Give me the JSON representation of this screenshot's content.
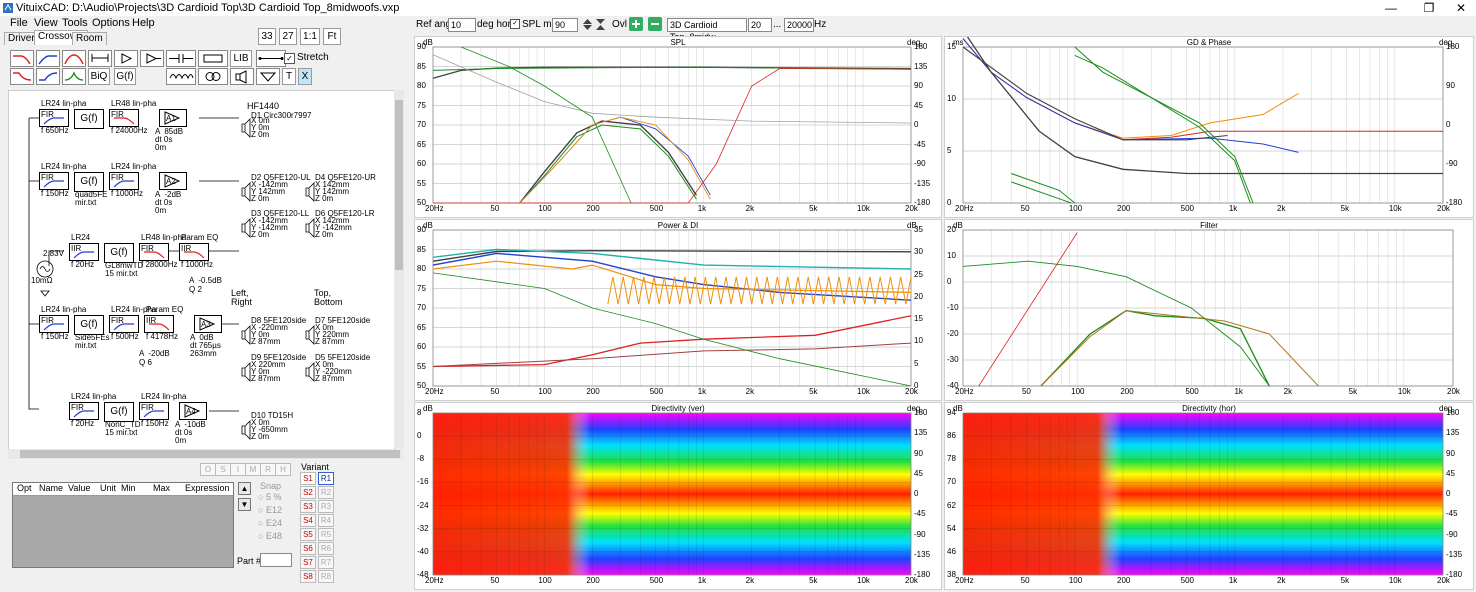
{
  "window": {
    "title": "VituixCAD: D:\\Audio\\Projects\\3D Cardioid Top\\3D Cardioid Top_8midwoofs.vxp",
    "min": "—",
    "restore": "❐",
    "close": "✕"
  },
  "menu": [
    "File",
    "View",
    "Tools",
    "Options",
    "Help"
  ],
  "tabs": [
    "Drivers",
    "Crossover",
    "Room"
  ],
  "zoom_buttons": [
    "33",
    "27",
    "1:1",
    "Ft"
  ],
  "toolbar": {
    "biq": "BiQ",
    "gf": "G(f)",
    "lib": "LIB",
    "t": "T",
    "x": "X",
    "stretch": "Stretch"
  },
  "colors": {
    "red": "#e02020",
    "blue": "#2040d0",
    "green": "#1a8c1a",
    "orange": "#f0900a",
    "teal": "#20b0b0",
    "gray": "#808080",
    "dark": "#404040",
    "brown": "#b07820",
    "pink": "#e08080"
  },
  "top": {
    "ref_angle_label": "Ref angle",
    "ref_angle": "10",
    "deg_hor": "deg hor",
    "spl_max_label": "SPL max",
    "spl_max": "90",
    "ovl": "Ovl",
    "driver": "3D Cardioid Top_8midw",
    "f_low": "20",
    "dots": "...",
    "f_high": "20000",
    "hz": "Hz"
  },
  "schematic": {
    "blocks": [
      {
        "t": "LR24 lin-pha",
        "b": "FIR",
        "f": "f  650Hz"
      },
      {
        "t": "LR48 lin-pha",
        "b": "FIR",
        "f": "f  24000Hz"
      },
      {
        "t": "LR24 lin-pha",
        "b": "FIR",
        "f": "f  150Hz"
      },
      {
        "t": "LR24 lin-pha",
        "b": "FIR",
        "f": "f  1000Hz"
      },
      {
        "t": "LR24",
        "b": "IIR",
        "f": "f  20Hz"
      },
      {
        "t": "LR48 lin-pha",
        "b": "FIR",
        "f": "f  28000Hz"
      },
      {
        "t": "Param EQ",
        "b": "IIR",
        "f": "f  1000Hz"
      },
      {
        "t": "LR24 lin-pha",
        "b": "FIR",
        "f": "f  150Hz"
      },
      {
        "t": "LR24 lin-pha",
        "b": "FIR",
        "f": "f  500Hz"
      },
      {
        "t": "Param EQ",
        "b": "IIR",
        "f": "f  4178Hz"
      },
      {
        "t": "LR24 lin-pha",
        "b": "FIR",
        "f": "f  20Hz"
      },
      {
        "t": "LR24 lin-pha",
        "b": "FIR",
        "f": "f  150Hz"
      }
    ],
    "gf": [
      "G(f)",
      "G(f)",
      "G(f)",
      "G(f)",
      "G(f)"
    ],
    "gf_sub": [
      "",
      "quad5FE\nmir.txt",
      "GL8mwTD\n15 mir.txt",
      "Side5FEs\nmir.txt",
      "NonC_TD\n15 mir.txt"
    ],
    "amps": [
      {
        "label": "A1",
        "v": "A  85dB\ndt 0s\n0m"
      },
      {
        "label": "A2",
        "v": "A  -2dB\ndt 0s\n0m"
      },
      {
        "label": "A3",
        "v": "A  0dB\ndt 765µs\n263mm"
      },
      {
        "label": "A4",
        "v": "A  -10dB\ndt 0s\n0m"
      }
    ],
    "drivers": [
      {
        "name": "HF1440",
        "d": "D1  Circ300r7997",
        "xyz": "X 0m\nY 0m\nZ 0m"
      },
      {
        "name": "D2  Q5FE120-UL",
        "xyz": "X -142mm\nY 142mm\nZ 0m"
      },
      {
        "name": "D4  Q5FE120-UR",
        "xyz": "X 142mm\nY 142mm\nZ 0m"
      },
      {
        "name": "D3  Q5FE120-LL",
        "xyz": "X -142mm\nY -142mm\nZ 0m"
      },
      {
        "name": "D6  Q5FE120-LR",
        "xyz": "X 142mm\nY -142mm\nZ 0m"
      },
      {
        "name": "D8  5FE120side",
        "xyz": "X -220mm\nY 0m\nZ 87mm"
      },
      {
        "name": "D7  5FE120side",
        "xyz": "X 0m\nY 220mm\nZ 87mm"
      },
      {
        "name": "D9  5FE120side",
        "xyz": "X 220mm\nY 0m\nZ 87mm"
      },
      {
        "name": "D5  5FE120side",
        "xyz": "X 0m\nY -220mm\nZ 87mm"
      },
      {
        "name": "D10  TD15H",
        "xyz": "X 0m\nY -650mm\nZ 0m"
      }
    ],
    "labels": {
      "left_right": "Left,\nRight",
      "top_bottom": "Top,\nBottom",
      "source": "2.83V",
      "ohm": "10mΩ",
      "a_param1": "A  -0.5dB\nQ 2",
      "a_param2": "A  -20dB\nQ 6"
    }
  },
  "params": {
    "cols": [
      "Opt",
      "Name",
      "Value",
      "Unit",
      "Min",
      "Max",
      "Expression"
    ],
    "osimrh": [
      "O",
      "S",
      "I",
      "M",
      "R",
      "H"
    ],
    "snap": "Snap",
    "snap_opts": [
      "5 %",
      "E12",
      "E24",
      "E48"
    ],
    "part": "Part #",
    "variant": "Variant",
    "s": [
      "S1",
      "S2",
      "S3",
      "S4",
      "S5",
      "S6",
      "S7",
      "S8"
    ],
    "r": [
      "R1",
      "R2",
      "R3",
      "R4",
      "R5",
      "R6",
      "R7",
      "R8"
    ]
  },
  "charts": {
    "spl": {
      "title": "SPL",
      "unit_l": "dB",
      "unit_r": "deg",
      "yl": [
        "90",
        "85",
        "80",
        "75",
        "70",
        "65",
        "60",
        "55",
        "50"
      ],
      "yr": [
        "180",
        "135",
        "90",
        "45",
        "0",
        "-45",
        "-90",
        "-135",
        "-180"
      ]
    },
    "gd": {
      "title": "GD & Phase",
      "unit_l": "ms",
      "unit_r": "deg",
      "yl": [
        "15",
        "10",
        "5",
        "0"
      ],
      "yr": [
        "180",
        "90",
        "0",
        "-90",
        "-180"
      ]
    },
    "power": {
      "title": "Power & DI",
      "unit_l": "dB",
      "unit_r": "dB",
      "yl": [
        "90",
        "85",
        "80",
        "75",
        "70",
        "65",
        "60",
        "55",
        "50"
      ],
      "yr": [
        "35",
        "30",
        "25",
        "20",
        "15",
        "10",
        "5",
        "0"
      ]
    },
    "filter": {
      "title": "Filter",
      "unit_l": "dB",
      "yl": [
        "20",
        "10",
        "0",
        "-10",
        "-20",
        "-30",
        "-40"
      ]
    },
    "dirv": {
      "title": "Directivity (ver)",
      "unit_l": "dB",
      "unit_r": "deg",
      "yl": [
        "8",
        "0",
        "-8",
        "-16",
        "-24",
        "-32",
        "-40",
        "-48"
      ],
      "yr": [
        "180",
        "135",
        "90",
        "45",
        "0",
        "-45",
        "-90",
        "-135",
        "-180"
      ]
    },
    "dirh": {
      "title": "Directivity (hor)",
      "unit_l": "dB",
      "unit_r": "deg",
      "yl": [
        "94",
        "86",
        "78",
        "70",
        "62",
        "54",
        "46",
        "38"
      ],
      "yr": [
        "180",
        "135",
        "90",
        "45",
        "0",
        "-45",
        "-90",
        "-135",
        "-180"
      ]
    },
    "xt": [
      "20Hz",
      "50",
      "100",
      "200",
      "500",
      "1k",
      "2k",
      "5k",
      "10k",
      "20k"
    ]
  }
}
